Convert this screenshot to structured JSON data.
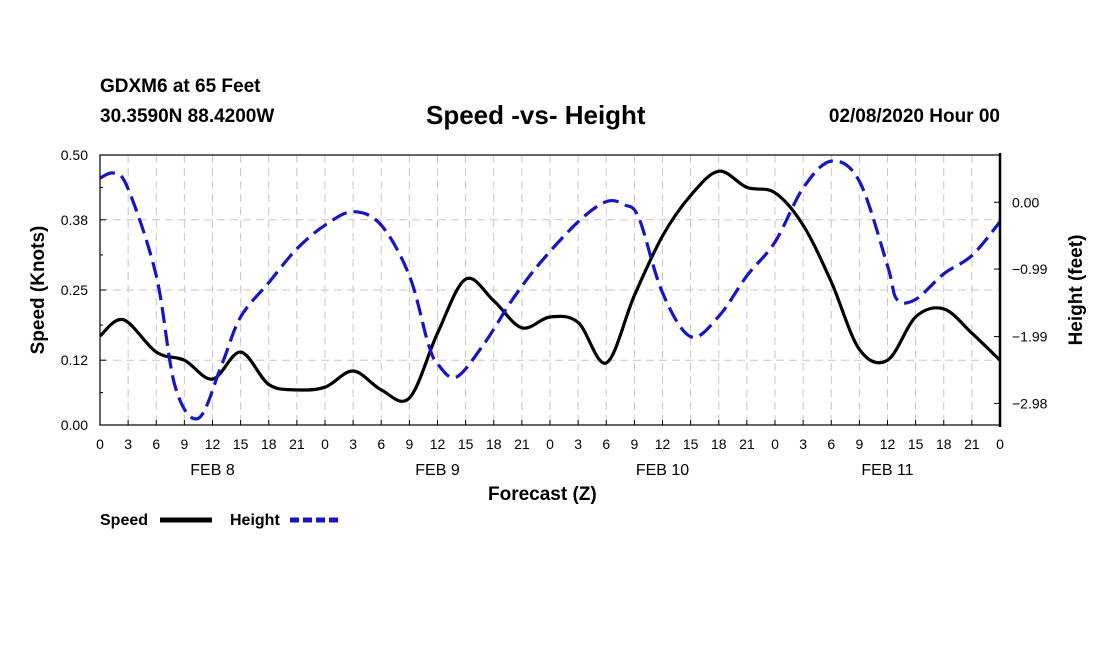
{
  "header": {
    "station": "GDXM6 at 65 Feet",
    "location": "30.3590N 88.4200W",
    "title": "Speed -vs- Height",
    "datetime": "02/08/2020 Hour 00"
  },
  "legend": {
    "speed_label": "Speed",
    "height_label": "Height"
  },
  "colors": {
    "speed": "#000000",
    "height": "#1414c8",
    "grid": "#c8c8c8"
  },
  "chart_data": {
    "type": "line",
    "title": "Speed -vs- Height",
    "xlabel": "Forecast (Z)",
    "ylabel_left": "Speed (Knots)",
    "ylabel_right": "Height (feet)",
    "x_range": [
      0,
      96
    ],
    "x_ticks": [
      0,
      3,
      6,
      9,
      12,
      15,
      18,
      21,
      24,
      27,
      30,
      33,
      36,
      39,
      42,
      45,
      48,
      51,
      54,
      57,
      60,
      63,
      66,
      69,
      72,
      75,
      78,
      81,
      84,
      87,
      90,
      93,
      96
    ],
    "x_tick_labels": [
      "0",
      "3",
      "6",
      "9",
      "12",
      "15",
      "18",
      "21",
      "0",
      "3",
      "6",
      "9",
      "12",
      "15",
      "18",
      "21",
      "0",
      "3",
      "6",
      "9",
      "12",
      "15",
      "18",
      "21",
      "0",
      "3",
      "6",
      "9",
      "12",
      "15",
      "18",
      "21",
      "0"
    ],
    "day_labels": [
      {
        "hour": 12,
        "label": "FEB 8"
      },
      {
        "hour": 36,
        "label": "FEB 9"
      },
      {
        "hour": 60,
        "label": "FEB 10"
      },
      {
        "hour": 84,
        "label": "FEB 11"
      }
    ],
    "y_left": {
      "range": [
        0,
        0.5
      ],
      "ticks": [
        0.0,
        0.12,
        0.25,
        0.38,
        0.5
      ],
      "tick_labels": [
        "0.00",
        "0.12",
        "0.25",
        "0.38",
        "0.50"
      ]
    },
    "y_right": {
      "range": [
        -3.3,
        0.7
      ],
      "ticks": [
        -2.98,
        -1.99,
        -0.99,
        0.0
      ],
      "tick_labels": [
        "−2.98",
        "−1.99",
        "−0.99",
        "0.00"
      ]
    },
    "grid": true,
    "series": [
      {
        "name": "Speed",
        "axis": "left",
        "style": "solid",
        "x": [
          0,
          2.5,
          6,
          9,
          12,
          15,
          18,
          21,
          24,
          27,
          30,
          33,
          36,
          39,
          42,
          45,
          48,
          51,
          54,
          57,
          60,
          63,
          66,
          69,
          72,
          75,
          78,
          81,
          84,
          87,
          90,
          93,
          96
        ],
        "y": [
          0.165,
          0.195,
          0.135,
          0.12,
          0.085,
          0.135,
          0.075,
          0.065,
          0.07,
          0.1,
          0.065,
          0.05,
          0.17,
          0.27,
          0.23,
          0.18,
          0.2,
          0.19,
          0.115,
          0.24,
          0.35,
          0.425,
          0.47,
          0.44,
          0.43,
          0.37,
          0.265,
          0.14,
          0.12,
          0.2,
          0.215,
          0.17,
          0.12
        ]
      },
      {
        "name": "Height",
        "axis": "right",
        "style": "dashed",
        "x": [
          0,
          1.5,
          3,
          6,
          8,
          10.5,
          13,
          15,
          18,
          21,
          24,
          27,
          30,
          33,
          35,
          36,
          38,
          41,
          44,
          47,
          51,
          54,
          56,
          57.5,
          60,
          63,
          66,
          69,
          72,
          75,
          78,
          81,
          84,
          85,
          87,
          90,
          93,
          96
        ],
        "y": [
          0.36,
          0.43,
          0.2,
          -1.09,
          -2.72,
          -3.2,
          -2.4,
          -1.7,
          -1.19,
          -0.69,
          -0.34,
          -0.14,
          -0.34,
          -1.09,
          -2.09,
          -2.39,
          -2.59,
          -2.09,
          -1.44,
          -0.89,
          -0.29,
          0.01,
          -0.04,
          -0.24,
          -1.34,
          -1.99,
          -1.69,
          -1.09,
          -0.59,
          0.21,
          0.61,
          0.31,
          -0.94,
          -1.44,
          -1.44,
          -1.06,
          -0.79,
          -0.29
        ]
      }
    ]
  }
}
